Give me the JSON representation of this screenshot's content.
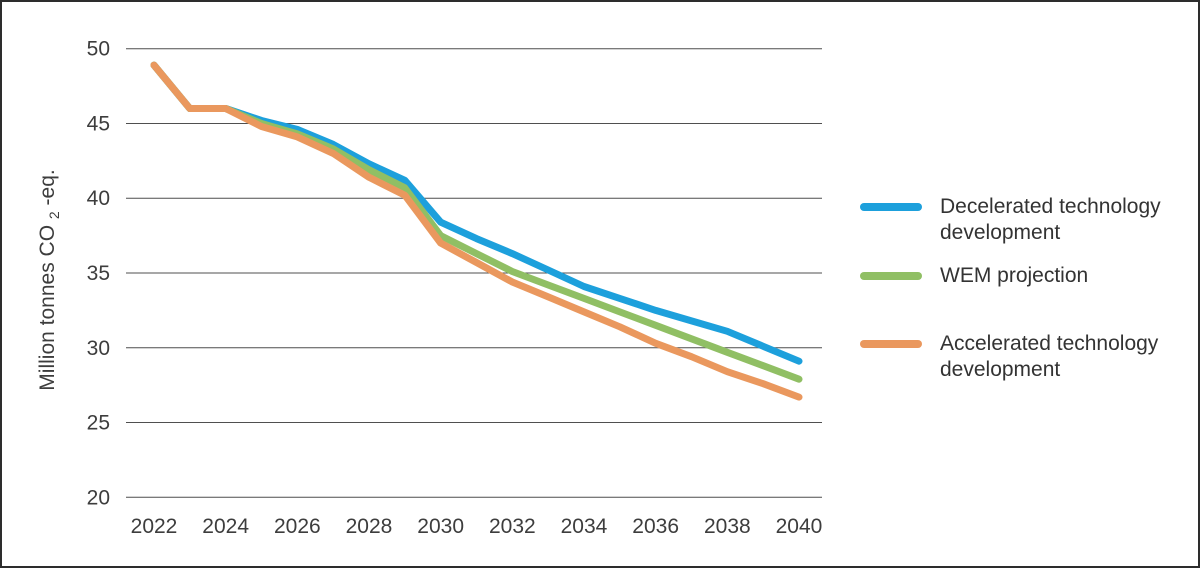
{
  "chart_data": {
    "type": "line",
    "title": "",
    "ylabel": "Million tonnes CO2-eq.",
    "ylabel_parts": {
      "main": "Million tonnes CO",
      "sub": "2",
      "suffix": "-eq."
    },
    "xlabel": "",
    "x": [
      2022,
      2023,
      2024,
      2025,
      2026,
      2027,
      2028,
      2029,
      2030,
      2031,
      2032,
      2033,
      2034,
      2035,
      2036,
      2037,
      2038,
      2039,
      2040
    ],
    "x_tick_years": [
      2022,
      2024,
      2026,
      2028,
      2030,
      2032,
      2034,
      2036,
      2038,
      2040
    ],
    "x_tick_labels": [
      "2022",
      "2024",
      "2026",
      "2028",
      "2030",
      "2032",
      "2034",
      "2036",
      "2038",
      "2040"
    ],
    "y_ticks": [
      50,
      45,
      40,
      35,
      30,
      25,
      20
    ],
    "y_tick_labels": [
      "50",
      "45",
      "40",
      "35",
      "30",
      "25",
      "20"
    ],
    "ylim": [
      20,
      50
    ],
    "xlim": [
      2022,
      2040
    ],
    "grid": "horizontal-only",
    "legend_position": "right",
    "series": [
      {
        "name": "Decelerated technology development",
        "color": "#1da0dc",
        "values": [
          48.9,
          46.0,
          46.0,
          45.2,
          44.6,
          43.6,
          42.3,
          41.2,
          38.4,
          37.3,
          36.3,
          35.2,
          34.1,
          33.3,
          32.5,
          31.8,
          31.1,
          30.1,
          29.1
        ]
      },
      {
        "name": "WEM projection",
        "color": "#90bf64",
        "values": [
          48.9,
          46.0,
          46.0,
          45.0,
          44.3,
          43.3,
          41.9,
          40.7,
          37.5,
          36.3,
          35.1,
          34.2,
          33.3,
          32.4,
          31.5,
          30.6,
          29.7,
          28.8,
          27.9
        ]
      },
      {
        "name": "Accelerated technology development",
        "color": "#ea985e",
        "values": [
          48.9,
          46.0,
          46.0,
          44.8,
          44.1,
          43.0,
          41.4,
          40.2,
          37.0,
          35.7,
          34.4,
          33.4,
          32.4,
          31.4,
          30.3,
          29.4,
          28.4,
          27.6,
          26.7
        ]
      }
    ],
    "style": {
      "gridline_color": "#4f4f4f",
      "tick_text_color": "#3d3d3d",
      "line_width": 7,
      "draw_order_note": "orange drawn on top where lines overlap (2022-2024)"
    }
  },
  "legend": {
    "items": [
      {
        "label": "Decelerated technology development"
      },
      {
        "label": "WEM projection"
      },
      {
        "label": "Accelerated technology development"
      }
    ]
  }
}
